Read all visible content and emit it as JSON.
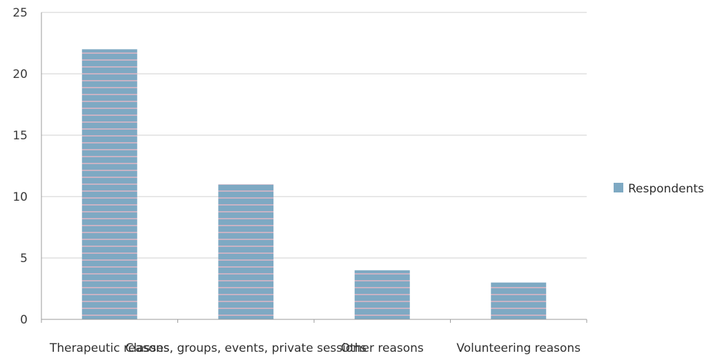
{
  "chart_data": {
    "type": "bar",
    "title": "",
    "xlabel": "",
    "ylabel": "",
    "categories": [
      "Therapeutic reasons",
      "Classes, groups, events, private sessions",
      "Other reasons",
      "Volunteering reasons"
    ],
    "series": [
      {
        "name": "Respondents",
        "values": [
          22,
          11,
          4,
          3
        ]
      }
    ],
    "ylim": [
      0,
      25
    ],
    "yticks": [
      0,
      5,
      10,
      15,
      20,
      25
    ],
    "grid": true,
    "legend": "right",
    "colors": {
      "bar": "#7ea9c3",
      "stripe": "#c9b3c4",
      "grid": "#cfcfcf"
    }
  }
}
